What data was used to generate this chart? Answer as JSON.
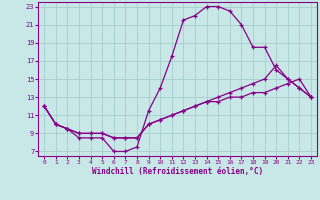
{
  "bg_color": "#c8e8e8",
  "grid_color": "#a0c8c8",
  "line_color": "#880088",
  "xlim_min": -0.5,
  "xlim_max": 23.5,
  "ylim_min": 6.5,
  "ylim_max": 23.5,
  "yticks": [
    7,
    9,
    11,
    13,
    15,
    17,
    19,
    21,
    23
  ],
  "xticks": [
    0,
    1,
    2,
    3,
    4,
    5,
    6,
    7,
    8,
    9,
    10,
    11,
    12,
    13,
    14,
    15,
    16,
    17,
    18,
    19,
    20,
    21,
    22,
    23
  ],
  "xlabel": "Windchill (Refroidissement éolien,°C)",
  "line_high_x": [
    0,
    1,
    2,
    3,
    4,
    5,
    6,
    7,
    8,
    9,
    10,
    11,
    12,
    13,
    14,
    15,
    16,
    17,
    18,
    19,
    20,
    21,
    22,
    23
  ],
  "line_high_y": [
    12,
    10,
    9.5,
    8.5,
    8.5,
    8.5,
    7.0,
    7.0,
    7.5,
    11.5,
    14.0,
    17.5,
    21.5,
    22.0,
    23.0,
    23.0,
    22.5,
    21.0,
    18.5,
    18.5,
    16.0,
    15.0,
    14.0,
    13.0
  ],
  "line_mid_x": [
    0,
    1,
    2,
    3,
    4,
    5,
    6,
    7,
    8,
    9,
    10,
    11,
    12,
    13,
    14,
    15,
    16,
    17,
    18,
    19,
    20,
    21,
    22,
    23
  ],
  "line_mid_y": [
    12,
    10,
    9.5,
    9.0,
    9.0,
    9.0,
    8.5,
    8.5,
    8.5,
    10.0,
    10.5,
    11.0,
    11.5,
    12.0,
    12.5,
    13.0,
    13.5,
    14.0,
    14.5,
    15.0,
    16.5,
    15.0,
    14.0,
    13.0
  ],
  "line_low_x": [
    0,
    1,
    2,
    3,
    4,
    5,
    6,
    7,
    8,
    9,
    10,
    11,
    12,
    13,
    14,
    15,
    16,
    17,
    18,
    19,
    20,
    21,
    22,
    23
  ],
  "line_low_y": [
    12,
    10,
    9.5,
    9.0,
    9.0,
    9.0,
    8.5,
    8.5,
    8.5,
    10.0,
    10.5,
    11.0,
    11.5,
    12.0,
    12.5,
    12.5,
    13.0,
    13.0,
    13.5,
    13.5,
    14.0,
    14.5,
    15.0,
    13.0
  ]
}
